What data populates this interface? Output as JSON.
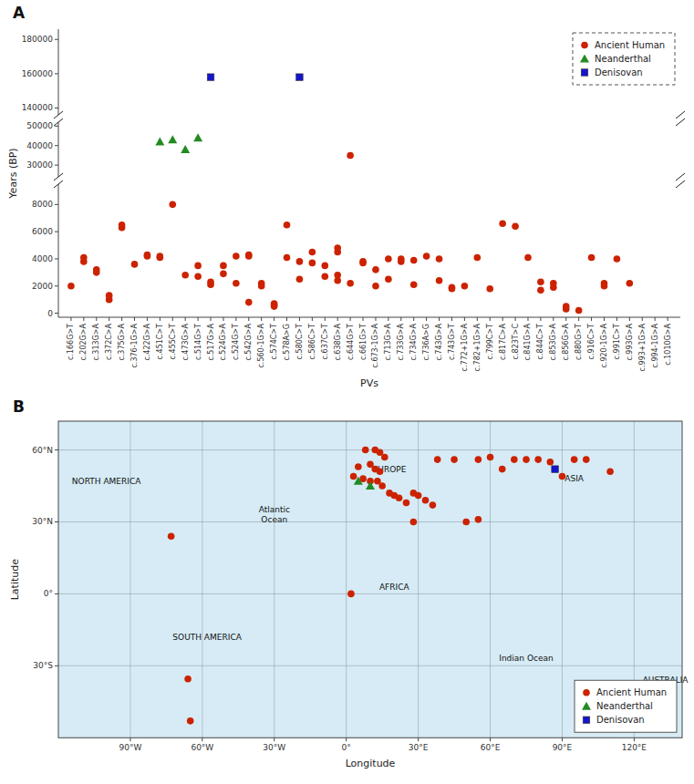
{
  "chart_data": [
    {
      "type": "scatter",
      "title": "A",
      "x_label": "PVs",
      "y_label": "Years (BP)",
      "categories": [
        "c.166G>T",
        "c.202G>A",
        "c.313G>A",
        "c.372C>A",
        "c.375G>A",
        "c.376-1G>A",
        "c.422G>A",
        "c.451C>T",
        "c.455C>T",
        "c.473G>A",
        "c.514G>T",
        "c.517G>A",
        "c.524G>A",
        "c.524G>T",
        "c.542G>A",
        "c.560-1G>A",
        "c.574C>T",
        "c.578A>G",
        "c.580C>T",
        "c.586C>T",
        "c.637C>T",
        "c.638G>A",
        "c.644G>T",
        "c.661G>T",
        "c.673-1G>A",
        "c.713G>A",
        "c.733G>A",
        "c.734G>A",
        "c.736A>G",
        "c.743G>A",
        "c.743G>T",
        "c.772+1G>A",
        "c.782+1G>A",
        "c.799C>T",
        "c.817C>A",
        "c.823T>C",
        "c.841G>A",
        "c.844C>T",
        "c.853G>A",
        "c.856G>A",
        "c.880G>T",
        "c.916C>T",
        "c.920-1G>A",
        "c.991C>T",
        "c.993G>A",
        "c.993+1G>A",
        "c.994-1G>A",
        "c.1010G>A"
      ],
      "ylim": [
        [
          -300,
          9500
        ],
        [
          24000,
          52000
        ],
        [
          136000,
          186000
        ]
      ],
      "yticks": [
        [
          0,
          2000,
          4000,
          6000,
          8000
        ],
        [
          30000,
          40000,
          50000
        ],
        [
          140000,
          160000,
          180000
        ]
      ],
      "legend": "upper right",
      "series": [
        {
          "name": "Ancient Human",
          "color": "#CC2200",
          "marker": "circle",
          "x": [
            "c.166G>T",
            "c.202G>A",
            "c.202G>A",
            "c.313G>A",
            "c.313G>A",
            "c.372C>A",
            "c.372C>A",
            "c.375G>A",
            "c.375G>A",
            "c.376-1G>A",
            "c.422G>A",
            "c.422G>A",
            "c.451C>T",
            "c.451C>T",
            "c.455C>T",
            "c.473G>A",
            "c.514G>T",
            "c.514G>T",
            "c.517G>A",
            "c.517G>A",
            "c.524G>A",
            "c.524G>A",
            "c.524G>T",
            "c.524G>T",
            "c.542G>A",
            "c.542G>A",
            "c.542G>A",
            "c.560-1G>A",
            "c.560-1G>A",
            "c.574C>T",
            "c.574C>T",
            "c.574C>T",
            "c.578A>G",
            "c.578A>G",
            "c.580C>T",
            "c.580C>T",
            "c.586C>T",
            "c.586C>T",
            "c.637C>T",
            "c.637C>T",
            "c.638G>A",
            "c.638G>A",
            "c.638G>A",
            "c.638G>A",
            "c.644G>T",
            "c.644G>T",
            "c.661G>T",
            "c.661G>T",
            "c.673-1G>A",
            "c.673-1G>A",
            "c.713G>A",
            "c.713G>A",
            "c.733G>A",
            "c.733G>A",
            "c.734G>A",
            "c.734G>A",
            "c.736A>G",
            "c.743G>A",
            "c.743G>A",
            "c.743G>T",
            "c.743G>T",
            "c.772+1G>A",
            "c.782+1G>A",
            "c.799C>T",
            "c.817C>A",
            "c.823T>C",
            "c.841G>A",
            "c.844C>T",
            "c.844C>T",
            "c.853G>A",
            "c.853G>A",
            "c.856G>A",
            "c.856G>A",
            "c.880G>T",
            "c.916C>T",
            "c.920-1G>A",
            "c.920-1G>A",
            "c.991C>T",
            "c.993G>A"
          ],
          "values": [
            2000,
            3800,
            4100,
            3000,
            3200,
            1000,
            1300,
            6300,
            6500,
            3600,
            4300,
            4200,
            4200,
            4100,
            8000,
            2800,
            3500,
            2700,
            2300,
            2100,
            3500,
            2900,
            4200,
            2200,
            4300,
            4200,
            800,
            2200,
            2000,
            500,
            700,
            600,
            6500,
            4100,
            3800,
            2500,
            4500,
            3700,
            3500,
            2700,
            4800,
            4500,
            2800,
            2400,
            2200,
            35000,
            3800,
            3700,
            3200,
            2000,
            4000,
            2500,
            4000,
            3800,
            3900,
            2100,
            4200,
            4000,
            2400,
            1900,
            1800,
            2000,
            4100,
            1800,
            6600,
            6400,
            4100,
            1700,
            2300,
            2200,
            1900,
            500,
            300,
            200,
            4100,
            2200,
            2000,
            4000,
            2200
          ]
        },
        {
          "name": "Neanderthal",
          "color": "#228B22",
          "marker": "triangle",
          "x": [
            "c.451C>T",
            "c.455C>T",
            "c.473G>A",
            "c.514G>T"
          ],
          "values": [
            42000,
            43000,
            38000,
            44000
          ]
        },
        {
          "name": "Denisovan",
          "color": "#1515CC",
          "marker": "square",
          "x": [
            "c.517G>A",
            "c.580C>T"
          ],
          "values": [
            158000,
            158000
          ]
        }
      ]
    },
    {
      "type": "scatter",
      "title": "B",
      "x_label": "Longitude",
      "y_label": "Latitude",
      "xlim": [
        -120,
        140
      ],
      "ylim": [
        -60,
        72
      ],
      "xticks": [
        {
          "value": -90,
          "label": "90°W"
        },
        {
          "value": -60,
          "label": "60°W"
        },
        {
          "value": -30,
          "label": "30°W"
        },
        {
          "value": 0,
          "label": "0°"
        },
        {
          "value": 30,
          "label": "30°E"
        },
        {
          "value": 60,
          "label": "60°E"
        },
        {
          "value": 90,
          "label": "90°E"
        },
        {
          "value": 120,
          "label": "120°E"
        }
      ],
      "yticks": [
        {
          "value": -30,
          "label": "30°S"
        },
        {
          "value": 0,
          "label": "0°"
        },
        {
          "value": 30,
          "label": "30°N"
        },
        {
          "value": 60,
          "label": "60°N"
        }
      ],
      "grid": true,
      "legend": "lower right",
      "annotations": [
        {
          "text": "NORTH AMERICA",
          "x": -100,
          "y": 47
        },
        {
          "text": "SOUTH AMERICA",
          "x": -58,
          "y": -18
        },
        {
          "text": "EUROPE",
          "x": 18,
          "y": 52
        },
        {
          "text": "AFRICA",
          "x": 20,
          "y": 3
        },
        {
          "text": "ASIA",
          "x": 95,
          "y": 48
        },
        {
          "text": "AUSTRALIA",
          "x": 133,
          "y": -36
        },
        {
          "text": "Atlantic\nOcean",
          "x": -30,
          "y": 33
        },
        {
          "text": "Indian Ocean",
          "x": 75,
          "y": -27
        }
      ],
      "series": [
        {
          "name": "Ancient Human",
          "color": "#CC2200",
          "marker": "circle",
          "x": [
            -73,
            -66,
            -65,
            8,
            12,
            14,
            16,
            5,
            10,
            12,
            14,
            3,
            7,
            10,
            13,
            15,
            18,
            20,
            22,
            25,
            28,
            30,
            33,
            36,
            38,
            45,
            50,
            55,
            60,
            65,
            70,
            75,
            80,
            85,
            90,
            95,
            100,
            110,
            2,
            28,
            55
          ],
          "values": [
            24,
            -35.5,
            -53,
            60,
            60,
            59,
            57,
            53,
            54,
            52,
            51,
            49,
            48,
            47,
            47,
            45,
            42,
            41,
            40,
            38,
            42,
            41,
            39,
            37,
            56,
            56,
            30,
            56,
            57,
            52,
            56,
            56,
            56,
            55,
            49,
            56,
            56,
            51,
            0,
            30,
            31
          ]
        },
        {
          "name": "Neanderthal",
          "color": "#228B22",
          "marker": "triangle",
          "x": [
            5,
            10
          ],
          "values": [
            47,
            45
          ]
        },
        {
          "name": "Denisovan",
          "color": "#1515CC",
          "marker": "square",
          "x": [
            87
          ],
          "values": [
            52
          ]
        }
      ]
    }
  ]
}
